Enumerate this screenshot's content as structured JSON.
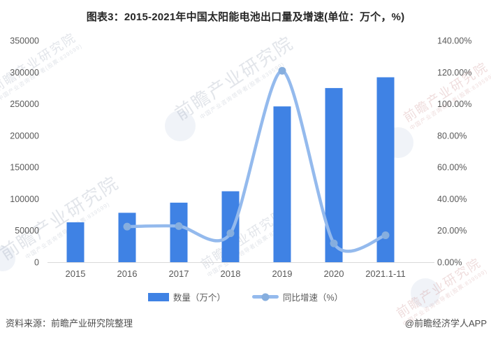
{
  "header": {
    "title": "图表3：2015-2021年中国太阳能电池出口量及增速(单位：万个，%)"
  },
  "chart_data": {
    "type": "bar+line",
    "title": "图表3：2015-2021年中国太阳能电池出口量及增速(单位：万个，%)",
    "categories": [
      "2015",
      "2016",
      "2017",
      "2018",
      "2019",
      "2020",
      "2021.1-11"
    ],
    "series": [
      {
        "name": "数量（万个）",
        "type": "bar",
        "axis": "left",
        "values": [
          63000,
          78000,
          94000,
          112000,
          246000,
          275000,
          292000
        ]
      },
      {
        "name": "同比增速（%）",
        "type": "line",
        "axis": "right",
        "values": [
          null,
          22.5,
          22.8,
          18.3,
          120.9,
          11.9,
          17.0
        ]
      }
    ],
    "y_left": {
      "min": 0,
      "max": 350000,
      "step": 50000,
      "ticks": [
        "0",
        "50000",
        "100000",
        "150000",
        "200000",
        "250000",
        "300000",
        "350000"
      ]
    },
    "y_right": {
      "min": 0,
      "max": 140,
      "step": 20,
      "ticks": [
        "0.00%",
        "20.00%",
        "40.00%",
        "60.00%",
        "80.00%",
        "100.00%",
        "120.00%",
        "140.00%"
      ]
    },
    "grid": false,
    "legend_position": "bottom"
  },
  "legend": {
    "bar_label": "数量（万个）",
    "line_label": "同比增速（%）"
  },
  "footer": {
    "source": "资料来源：前瞻产业研究院整理",
    "credit": "@前瞻经济学人APP"
  },
  "watermarks": {
    "brand": "前瞻产业研究院",
    "tagline": "中国产业咨询领导者(股票:839599)"
  },
  "colors": {
    "bar": "#3f82e4",
    "line": "#94baed",
    "dot": "#86aede",
    "axis_text": "#595959",
    "baseline": "#d9d9d9",
    "title_text": "#262626"
  }
}
